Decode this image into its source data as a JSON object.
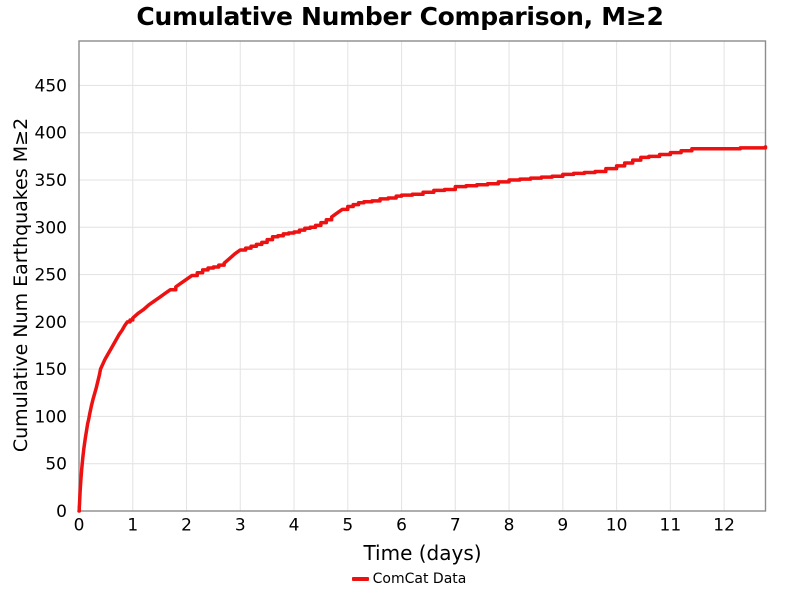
{
  "chart_data": {
    "type": "line",
    "title": "Cumulative Number Comparison, M≥2",
    "xlabel": "Time (days)",
    "ylabel": "Cumulative Num Earthquakes M≥2",
    "xlim": [
      0,
      12.77
    ],
    "ylim": [
      0,
      497
    ],
    "xticks": [
      0,
      1,
      2,
      3,
      4,
      5,
      6,
      7,
      8,
      9,
      10,
      11,
      12
    ],
    "yticks": [
      0,
      50,
      100,
      150,
      200,
      250,
      300,
      350,
      400,
      450
    ],
    "grid": true,
    "legend_position": "bottom-center",
    "series": [
      {
        "name": "ComCat Data",
        "color": "#ee1111",
        "points": [
          [
            0,
            0
          ],
          [
            0.005,
            3
          ],
          [
            0.01,
            8
          ],
          [
            0.015,
            14
          ],
          [
            0.02,
            20
          ],
          [
            0.03,
            29
          ],
          [
            0.04,
            37
          ],
          [
            0.05,
            44
          ],
          [
            0.06,
            50
          ],
          [
            0.07,
            56
          ],
          [
            0.08,
            61
          ],
          [
            0.09,
            66
          ],
          [
            0.1,
            70
          ],
          [
            0.12,
            78
          ],
          [
            0.14,
            85
          ],
          [
            0.16,
            92
          ],
          [
            0.18,
            97
          ],
          [
            0.2,
            103
          ],
          [
            0.23,
            111
          ],
          [
            0.26,
            118
          ],
          [
            0.29,
            124
          ],
          [
            0.32,
            130
          ],
          [
            0.35,
            137
          ],
          [
            0.38,
            144
          ],
          [
            0.4,
            150
          ],
          [
            0.44,
            155
          ],
          [
            0.48,
            160
          ],
          [
            0.52,
            164
          ],
          [
            0.56,
            168
          ],
          [
            0.6,
            172
          ],
          [
            0.65,
            177
          ],
          [
            0.7,
            182
          ],
          [
            0.75,
            187
          ],
          [
            0.8,
            191
          ],
          [
            0.85,
            196
          ],
          [
            0.9,
            200
          ],
          [
            0.95,
            202
          ],
          [
            1.0,
            204
          ],
          [
            1.1,
            209
          ],
          [
            1.2,
            213
          ],
          [
            1.3,
            218
          ],
          [
            1.4,
            222
          ],
          [
            1.5,
            226
          ],
          [
            1.6,
            230
          ],
          [
            1.7,
            234
          ],
          [
            1.8,
            237
          ],
          [
            1.9,
            241
          ],
          [
            2.0,
            245
          ],
          [
            2.1,
            249
          ],
          [
            2.2,
            252
          ],
          [
            2.3,
            255
          ],
          [
            2.4,
            257
          ],
          [
            2.5,
            258
          ],
          [
            2.6,
            260
          ],
          [
            2.7,
            262
          ],
          [
            2.8,
            267
          ],
          [
            2.9,
            272
          ],
          [
            3.0,
            276
          ],
          [
            3.1,
            278
          ],
          [
            3.2,
            280
          ],
          [
            3.3,
            282
          ],
          [
            3.4,
            284
          ],
          [
            3.5,
            287
          ],
          [
            3.6,
            290
          ],
          [
            3.7,
            291
          ],
          [
            3.8,
            293
          ],
          [
            3.9,
            294
          ],
          [
            4.0,
            295
          ],
          [
            4.1,
            297
          ],
          [
            4.2,
            299
          ],
          [
            4.3,
            300
          ],
          [
            4.4,
            302
          ],
          [
            4.5,
            305
          ],
          [
            4.6,
            308
          ],
          [
            4.7,
            311
          ],
          [
            4.8,
            315
          ],
          [
            4.9,
            319
          ],
          [
            5.0,
            322
          ],
          [
            5.1,
            324
          ],
          [
            5.2,
            326
          ],
          [
            5.3,
            327
          ],
          [
            5.45,
            328
          ],
          [
            5.6,
            330
          ],
          [
            5.75,
            331
          ],
          [
            5.9,
            333
          ],
          [
            6.0,
            334
          ],
          [
            6.2,
            335
          ],
          [
            6.4,
            337
          ],
          [
            6.6,
            339
          ],
          [
            6.8,
            340
          ],
          [
            7.0,
            343
          ],
          [
            7.2,
            344
          ],
          [
            7.4,
            345
          ],
          [
            7.6,
            346
          ],
          [
            7.8,
            348
          ],
          [
            8.0,
            350
          ],
          [
            8.2,
            351
          ],
          [
            8.4,
            352
          ],
          [
            8.6,
            353
          ],
          [
            8.8,
            354
          ],
          [
            9.0,
            356
          ],
          [
            9.2,
            357
          ],
          [
            9.4,
            358
          ],
          [
            9.6,
            359
          ],
          [
            9.8,
            362
          ],
          [
            10.0,
            365
          ],
          [
            10.15,
            368
          ],
          [
            10.3,
            371
          ],
          [
            10.45,
            374
          ],
          [
            10.6,
            375
          ],
          [
            10.8,
            377
          ],
          [
            11.0,
            379
          ],
          [
            11.2,
            381
          ],
          [
            11.4,
            383
          ],
          [
            11.7,
            383
          ],
          [
            12.0,
            383
          ],
          [
            12.3,
            384
          ],
          [
            12.6,
            384
          ],
          [
            12.77,
            385
          ]
        ]
      }
    ]
  },
  "colors": {
    "line": "#ee1111",
    "grid": "#e5e5e5",
    "spine": "#8c8c8c",
    "text": "#000000",
    "background": "#ffffff"
  }
}
